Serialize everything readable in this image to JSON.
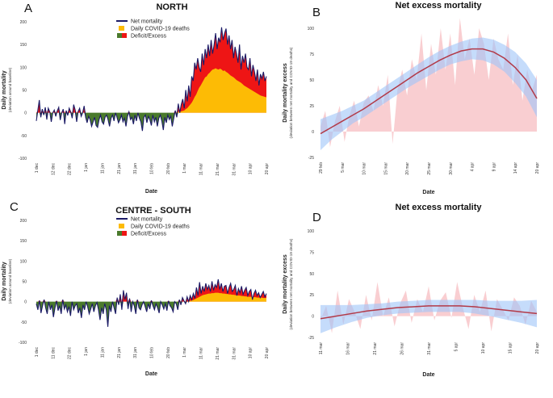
{
  "colors": {
    "net_mortality": "#1b1a66",
    "covid_deaths": "#fdbb05",
    "deficit": "#4a7a2c",
    "excess": "#ee1515",
    "trend": "#b23a48",
    "ci_band": "#9fc5f8",
    "raw_fill": "#f8c6c9"
  },
  "chart_data": [
    {
      "panel": "A",
      "type": "area",
      "title": "NORTH",
      "xlabel": "Date",
      "ylabel": "Daily mortality",
      "ylabel_sub": "(deviation around baseline)",
      "ylim": [
        -100,
        200
      ],
      "yticks": [
        -100,
        -50,
        0,
        50,
        100,
        150,
        200
      ],
      "xtick_labels": [
        "1 dec",
        "12 dec",
        "22 dec",
        "1 jan",
        "11 jan",
        "21 jan",
        "31 jan",
        "10 feb",
        "20 feb",
        "1 mar",
        "11 mar",
        "21 mar",
        "31 mar",
        "10 apr",
        "20 apr"
      ],
      "legend": [
        "Net mortality",
        "Daily COVID-19 deaths",
        "Deficit/Excess"
      ],
      "legend_position": "top-center",
      "net_mortality": [
        -18,
        5,
        28,
        -10,
        8,
        -5,
        12,
        -15,
        10,
        2,
        -20,
        0,
        6,
        -8,
        4,
        12,
        -16,
        0,
        8,
        -25,
        5,
        -6,
        10,
        2,
        -12,
        18,
        6,
        -20,
        3,
        10,
        -8,
        0,
        15,
        -10,
        -22,
        -8,
        -15,
        -30,
        -20,
        -10,
        -28,
        -32,
        -15,
        -5,
        -20,
        -25,
        -10,
        -5,
        -15,
        -30,
        -12,
        -5,
        -18,
        0,
        -10,
        -22,
        -15,
        -5,
        -20,
        -12,
        -30,
        -8,
        2,
        -15,
        -10,
        -25,
        -5,
        -18,
        0,
        -12,
        -20,
        -40,
        -10,
        -5,
        -22,
        -8,
        -15,
        -28,
        -5,
        -20,
        -10,
        -30,
        -12,
        -5,
        -18,
        -38,
        -10,
        -22,
        -5,
        -15,
        -8,
        -30,
        -12,
        5,
        -10,
        20,
        0,
        18,
        30,
        10,
        50,
        25,
        60,
        35,
        80,
        70,
        110,
        95,
        120,
        100,
        90,
        130,
        105,
        140,
        120,
        150,
        125,
        160,
        130,
        150,
        175,
        140,
        165,
        155,
        188,
        160,
        175,
        185,
        150,
        170,
        140,
        160,
        120,
        145,
        130,
        110,
        150,
        95,
        125,
        110,
        130,
        100,
        95,
        120,
        80,
        105,
        90,
        70,
        95,
        60,
        85,
        75,
        90,
        70,
        80
      ],
      "covid_deaths": [
        0,
        0,
        0,
        0,
        0,
        0,
        0,
        0,
        0,
        0,
        0,
        0,
        0,
        0,
        0,
        0,
        0,
        0,
        0,
        0,
        0,
        0,
        0,
        0,
        0,
        0,
        0,
        0,
        0,
        0,
        0,
        0,
        0,
        0,
        0,
        0,
        0,
        0,
        0,
        0,
        0,
        0,
        0,
        0,
        0,
        0,
        0,
        0,
        0,
        0,
        0,
        0,
        0,
        0,
        0,
        0,
        0,
        0,
        0,
        0,
        0,
        0,
        0,
        0,
        0,
        0,
        0,
        0,
        0,
        0,
        0,
        0,
        0,
        0,
        0,
        0,
        0,
        0,
        0,
        0,
        0,
        0,
        0,
        0,
        0,
        0,
        0,
        0,
        0,
        0,
        0,
        0,
        0,
        1,
        1,
        2,
        2,
        3,
        4,
        5,
        8,
        10,
        14,
        18,
        22,
        28,
        35,
        40,
        48,
        55,
        60,
        66,
        72,
        78,
        80,
        85,
        88,
        92,
        95,
        96,
        98,
        96,
        95,
        97,
        95,
        92,
        93,
        90,
        88,
        85,
        82,
        80,
        78,
        75,
        72,
        70,
        68,
        66,
        63,
        60,
        58,
        56,
        54,
        52,
        50,
        48,
        46,
        44,
        42,
        40,
        38,
        37,
        36,
        35,
        34
      ]
    },
    {
      "panel": "B",
      "type": "line",
      "title": "Net excess mortality",
      "xlabel": "Date",
      "ylabel": "Daily mortality excess",
      "ylabel_sub": "(deviation between net mortality and COVID-19 deaths)",
      "ylim": [
        -25,
        100
      ],
      "yticks": [
        -25,
        0,
        25,
        50,
        75,
        100
      ],
      "xtick_labels": [
        "29 feb",
        "5 mar",
        "10 mar",
        "15 mar",
        "20 mar",
        "25 mar",
        "30 mar",
        "4 apr",
        "9 apr",
        "14 apr",
        "20 apr"
      ],
      "series": [
        {
          "name": "Daily excess",
          "values": [
            5,
            20,
            -15,
            10,
            25,
            -10,
            15,
            30,
            5,
            28,
            35,
            20,
            45,
            25,
            55,
            -12,
            40,
            60,
            35,
            70,
            50,
            95,
            40,
            85,
            55,
            100,
            60,
            95,
            45,
            110,
            70,
            90,
            55,
            100,
            85,
            50,
            90,
            70,
            60,
            95,
            45,
            75,
            30,
            60,
            40,
            55
          ]
        },
        {
          "name": "Trend",
          "values": [
            -2,
            4,
            10,
            16,
            22,
            29,
            36,
            43,
            50,
            57,
            63,
            69,
            74,
            78,
            80,
            80,
            77,
            71,
            62,
            50,
            32
          ]
        },
        {
          "name": "CI lower",
          "values": [
            -18,
            -8,
            0,
            8,
            14,
            21,
            28,
            35,
            42,
            48,
            54,
            60,
            65,
            68,
            70,
            69,
            65,
            58,
            47,
            34,
            14
          ]
        },
        {
          "name": "CI upper",
          "values": [
            12,
            16,
            20,
            25,
            30,
            37,
            44,
            51,
            58,
            65,
            72,
            78,
            83,
            87,
            90,
            91,
            89,
            84,
            77,
            66,
            50
          ]
        }
      ]
    },
    {
      "panel": "C",
      "type": "area",
      "title": "CENTRE - SOUTH",
      "xlabel": "Date",
      "ylabel": "Daily mortality",
      "ylabel_sub": "(deviation around baseline)",
      "ylim": [
        -100,
        200
      ],
      "yticks": [
        -100,
        -50,
        0,
        50,
        100,
        150,
        200
      ],
      "xtick_labels": [
        "1 dec",
        "11 dec",
        "22 dec",
        "1 jan",
        "11 jan",
        "21 jan",
        "31 jan",
        "10 feb",
        "20 feb",
        "1 mar",
        "11 mar",
        "21 mar",
        "31 mar",
        "10 apr",
        "20 apr"
      ],
      "legend": [
        "Net mortality",
        "Daily COVID-19 deaths",
        "Deficit/Excess"
      ],
      "legend_position": "top-center",
      "net_mortality": [
        -5,
        -20,
        3,
        -28,
        -10,
        5,
        -15,
        -30,
        0,
        -20,
        -8,
        -38,
        -15,
        2,
        -22,
        -10,
        -30,
        5,
        -18,
        -8,
        -25,
        -12,
        -35,
        0,
        -20,
        -10,
        -5,
        -28,
        -15,
        -40,
        -8,
        -20,
        0,
        -12,
        -30,
        -18,
        -5,
        -25,
        -10,
        -2,
        -20,
        -45,
        -15,
        -30,
        -5,
        -20,
        -62,
        -10,
        -25,
        0,
        -15,
        -30,
        10,
        -8,
        18,
        -20,
        28,
        5,
        22,
        -18,
        8,
        -25,
        0,
        -10,
        -30,
        5,
        -15,
        -20,
        -8,
        0,
        -12,
        -25,
        -5,
        -18,
        3,
        -10,
        -20,
        -5,
        -15,
        -28,
        0,
        -8,
        -18,
        -5,
        -22,
        2,
        -10,
        -15,
        -25,
        0,
        -5,
        -20,
        5,
        -8,
        10,
        2,
        -5,
        12,
        0,
        15,
        5,
        20,
        8,
        35,
        15,
        48,
        20,
        38,
        25,
        45,
        30,
        40,
        25,
        50,
        28,
        42,
        35,
        55,
        30,
        45,
        25,
        38,
        40,
        20,
        35,
        45,
        25,
        30,
        40,
        15,
        32,
        22,
        38,
        18,
        28,
        35,
        15,
        25,
        30,
        5,
        20,
        28,
        15,
        22,
        10,
        18,
        25,
        12,
        20
      ],
      "covid_deaths": [
        0,
        0,
        0,
        0,
        0,
        0,
        0,
        0,
        0,
        0,
        0,
        0,
        0,
        0,
        0,
        0,
        0,
        0,
        0,
        0,
        0,
        0,
        0,
        0,
        0,
        0,
        0,
        0,
        0,
        0,
        0,
        0,
        0,
        0,
        0,
        0,
        0,
        0,
        0,
        0,
        0,
        0,
        0,
        0,
        0,
        0,
        0,
        0,
        0,
        0,
        0,
        0,
        0,
        0,
        0,
        0,
        0,
        0,
        0,
        0,
        0,
        0,
        0,
        0,
        0,
        0,
        0,
        0,
        0,
        0,
        0,
        0,
        0,
        0,
        0,
        0,
        0,
        0,
        0,
        0,
        0,
        0,
        0,
        0,
        0,
        0,
        0,
        0,
        0,
        0,
        0,
        0,
        0,
        0,
        0,
        0,
        0,
        0,
        1,
        2,
        3,
        4,
        6,
        8,
        10,
        12,
        14,
        16,
        17,
        18,
        19,
        20,
        20,
        21,
        21,
        22,
        22,
        22,
        21,
        21,
        20,
        20,
        19,
        19,
        18,
        18,
        17,
        17,
        16,
        16,
        15,
        15,
        14,
        14,
        13,
        13,
        12,
        12,
        12,
        11,
        11,
        11,
        10,
        10,
        10,
        10,
        9,
        9,
        9
      ]
    },
    {
      "panel": "D",
      "type": "line",
      "title": "Net excess mortality",
      "xlabel": "Date",
      "ylabel": "Daily mortality excess",
      "ylabel_sub": "(deviation between net mortality and COVID-19 deaths)",
      "ylim": [
        -25,
        100
      ],
      "yticks": [
        -25,
        0,
        25,
        50,
        75,
        100
      ],
      "xtick_labels": [
        "11 mar",
        "16 mar",
        "21 mar",
        "26 mar",
        "31 mar",
        "5 apr",
        "10 apr",
        "15 apr",
        "20 apr"
      ],
      "series": [
        {
          "name": "Daily excess",
          "values": [
            -5,
            12,
            -20,
            30,
            -10,
            20,
            5,
            -15,
            25,
            -5,
            40,
            0,
            22,
            -12,
            15,
            30,
            -8,
            20,
            5,
            35,
            -5,
            18,
            28,
            -2,
            40,
            10,
            -15,
            25,
            5,
            30,
            -18,
            20,
            8,
            -5,
            22,
            12,
            -10,
            18,
            5
          ]
        },
        {
          "name": "Trend",
          "values": [
            -3,
            0,
            3,
            6,
            8,
            10,
            11,
            12,
            12,
            12,
            11,
            9,
            7,
            5,
            3
          ]
        },
        {
          "name": "CI lower",
          "values": [
            -20,
            -13,
            -7,
            -2,
            1,
            3,
            4,
            5,
            5,
            5,
            3,
            0,
            -4,
            -8,
            -13
          ]
        },
        {
          "name": "CI upper",
          "values": [
            13,
            13,
            13,
            14,
            15,
            17,
            18,
            19,
            19,
            19,
            19,
            18,
            18,
            18,
            19
          ]
        }
      ]
    }
  ]
}
